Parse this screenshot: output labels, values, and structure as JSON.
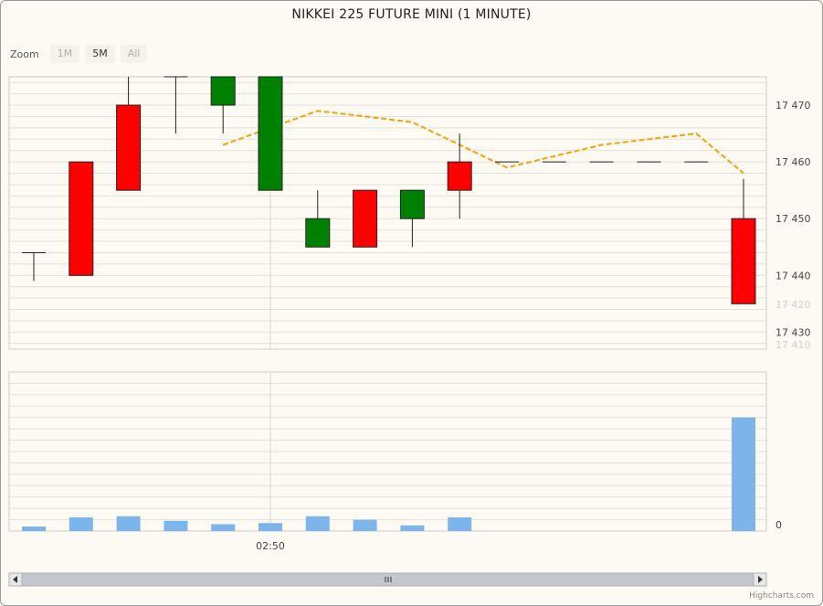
{
  "title": "NIKKEI 225 FUTURE MINI (1 MINUTE)",
  "zoom": {
    "label": "Zoom",
    "buttons": [
      {
        "label": "1M",
        "active": false
      },
      {
        "label": "5M",
        "active": true
      },
      {
        "label": "All",
        "active": false
      }
    ]
  },
  "credit": "Highcharts.com",
  "chart_data": {
    "type": "candlestick",
    "x_tick_label": "02:50",
    "price_axis": {
      "ylim": [
        17427,
        17475
      ],
      "ticks": [
        17430,
        17440,
        17450,
        17460,
        17470
      ],
      "tick_labels": [
        "17 430",
        "17 440",
        "17 450",
        "17 460",
        "17 470"
      ]
    },
    "navigator_axis_labels": [
      "17 420",
      "17 410"
    ],
    "volume_axis": {
      "ylim": [
        0,
        140
      ],
      "ticks": [
        0
      ],
      "tick_labels": [
        "0"
      ]
    },
    "candles": [
      {
        "open": 17444,
        "high": 17444,
        "low": 17439,
        "close": 17444
      },
      {
        "open": 17440,
        "high": 17460,
        "low": 17440,
        "close": 17460
      },
      {
        "open": 17455,
        "high": 17475,
        "low": 17455,
        "close": 17470
      },
      {
        "open": 17475,
        "high": 17475,
        "low": 17465,
        "close": 17475
      },
      {
        "open": 17475,
        "high": 17475,
        "low": 17465,
        "close": 17470
      },
      {
        "open": 17475,
        "high": 17475,
        "low": 17455,
        "close": 17455
      },
      {
        "open": 17450,
        "high": 17455,
        "low": 17445,
        "close": 17445
      },
      {
        "open": 17445,
        "high": 17455,
        "low": 17445,
        "close": 17455
      },
      {
        "open": 17455,
        "high": 17455,
        "low": 17445,
        "close": 17450
      },
      {
        "open": 17455,
        "high": 17465,
        "low": 17450,
        "close": 17460
      },
      {
        "open": 17460,
        "high": 17460,
        "low": 17460,
        "close": 17460
      },
      {
        "open": 17460,
        "high": 17460,
        "low": 17460,
        "close": 17460
      },
      {
        "open": 17460,
        "high": 17460,
        "low": 17460,
        "close": 17460
      },
      {
        "open": 17460,
        "high": 17460,
        "low": 17460,
        "close": 17460
      },
      {
        "open": 17460,
        "high": 17460,
        "low": 17460,
        "close": 17460
      },
      {
        "open": 17435,
        "high": 17457,
        "low": 17435,
        "close": 17450
      }
    ],
    "candle_colors": {
      "up": "#ff0000",
      "down": "#008000"
    },
    "moving_average": {
      "color": "#f0a30a",
      "points": [
        {
          "index": 4,
          "value": 17463
        },
        {
          "index": 6,
          "value": 17469
        },
        {
          "index": 8,
          "value": 17467
        },
        {
          "index": 10,
          "value": 17459
        },
        {
          "index": 11,
          "value": 17461
        },
        {
          "index": 12,
          "value": 17463
        },
        {
          "index": 14,
          "value": 17465
        },
        {
          "index": 15,
          "value": 17458
        }
      ]
    },
    "volume": {
      "color": "#7cb5ec",
      "values": [
        4,
        12,
        13,
        9,
        6,
        7,
        13,
        10,
        5,
        12,
        0,
        0,
        0,
        0,
        0,
        100
      ]
    }
  }
}
